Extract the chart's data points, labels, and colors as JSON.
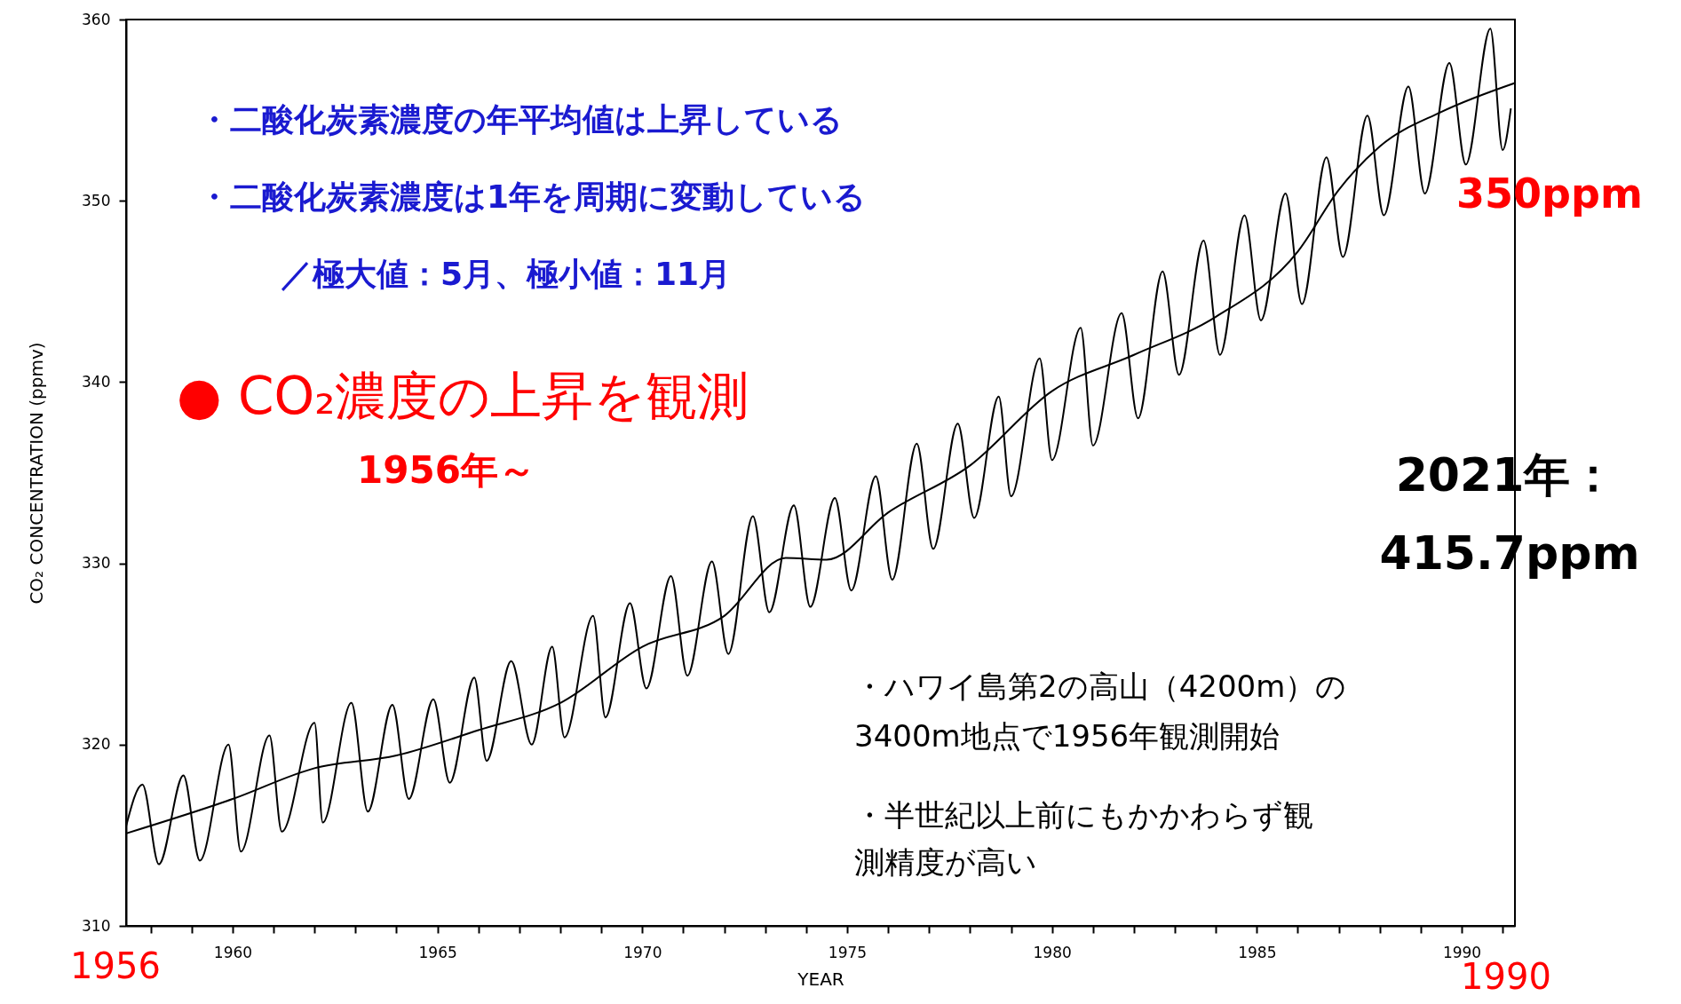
{
  "chart_data": {
    "type": "line",
    "xlabel": "YEAR",
    "ylabel": "CO₂ CONCENTRATION (ppmv)",
    "xlim": [
      1957.4,
      1991.3
    ],
    "ylim": [
      310,
      360
    ],
    "xticks": [
      {
        "value": 1958,
        "label": null
      },
      {
        "value": 1959,
        "label": null
      },
      1960,
      {
        "value": 1961,
        "label": null
      },
      {
        "value": 1962,
        "label": null
      },
      {
        "value": 1963,
        "label": null
      },
      {
        "value": 1964,
        "label": null
      },
      1965,
      {
        "value": 1966,
        "label": null
      },
      {
        "value": 1967,
        "label": null
      },
      {
        "value": 1968,
        "label": null
      },
      {
        "value": 1969,
        "label": null
      },
      1970,
      {
        "value": 1971,
        "label": null
      },
      {
        "value": 1972,
        "label": null
      },
      {
        "value": 1973,
        "label": null
      },
      {
        "value": 1974,
        "label": null
      },
      1975,
      {
        "value": 1976,
        "label": null
      },
      {
        "value": 1977,
        "label": null
      },
      {
        "value": 1978,
        "label": null
      },
      {
        "value": 1979,
        "label": null
      },
      1980,
      {
        "value": 1981,
        "label": null
      },
      {
        "value": 1982,
        "label": null
      },
      {
        "value": 1983,
        "label": null
      },
      {
        "value": 1984,
        "label": null
      },
      1985,
      {
        "value": 1986,
        "label": null
      },
      {
        "value": 1987,
        "label": null
      },
      {
        "value": 1988,
        "label": null
      },
      {
        "value": 1989,
        "label": null
      },
      1990,
      {
        "value": 1991,
        "label": null
      }
    ],
    "yticks": [
      310,
      320,
      330,
      340,
      350,
      360
    ],
    "grid": false,
    "marker": "none",
    "line_style": "solid",
    "series": [
      {
        "color": "#000000",
        "x": [
          1957.4,
          1957.8,
          1958.2,
          1958.8,
          1959.2,
          1959.9,
          1960.2,
          1960.9,
          1961.2,
          1962.0,
          1962.2,
          1962.9,
          1963.3,
          1963.9,
          1964.3,
          1964.9,
          1965.3,
          1965.9,
          1966.2,
          1966.8,
          1967.3,
          1967.8,
          1968.1,
          1968.8,
          1969.1,
          1969.7,
          1970.1,
          1970.7,
          1971.1,
          1971.7,
          1972.1,
          1972.7,
          1973.1,
          1973.7,
          1974.1,
          1974.7,
          1975.1,
          1975.7,
          1976.1,
          1976.7,
          1977.1,
          1977.7,
          1978.1,
          1978.7,
          1979.0,
          1979.7,
          1980.0,
          1980.7,
          1981.0,
          1981.7,
          1982.1,
          1982.7,
          1983.1,
          1983.7,
          1984.1,
          1984.7,
          1985.1,
          1985.7,
          1986.1,
          1986.7,
          1987.1,
          1987.7,
          1988.1,
          1988.7,
          1989.1,
          1989.7,
          1990.1,
          1990.7,
          1991.0,
          1991.2
        ],
        "values": [
          315.5,
          317.8,
          313.4,
          318.3,
          313.6,
          320.0,
          314.1,
          320.5,
          315.2,
          321.2,
          315.7,
          322.3,
          316.3,
          322.2,
          317.0,
          322.5,
          317.9,
          323.7,
          319.1,
          324.6,
          320.0,
          325.4,
          320.4,
          327.1,
          321.5,
          327.8,
          323.1,
          329.3,
          323.8,
          330.1,
          325.0,
          332.6,
          327.3,
          333.2,
          327.6,
          333.6,
          328.5,
          334.8,
          329.1,
          336.6,
          330.8,
          337.7,
          332.5,
          339.2,
          333.7,
          341.3,
          335.7,
          343.0,
          336.5,
          343.8,
          338.0,
          346.1,
          340.4,
          347.8,
          341.5,
          349.2,
          343.4,
          350.4,
          344.3,
          352.4,
          346.9,
          354.7,
          349.2,
          356.3,
          350.4,
          357.6,
          352.0,
          359.5,
          352.8,
          355.1
        ]
      },
      {
        "color": "#000000",
        "x": [
          1957.4,
          1960,
          1962,
          1964,
          1966,
          1968,
          1970,
          1972,
          1973.5,
          1974.5,
          1976,
          1978,
          1980,
          1982,
          1984,
          1986,
          1987,
          1988,
          1989.5,
          1991.3
        ],
        "values": [
          315.1,
          317.0,
          318.7,
          319.4,
          320.8,
          322.3,
          325.4,
          327.1,
          330.3,
          330.2,
          332.8,
          335.4,
          339.5,
          341.5,
          343.6,
          347.2,
          350.6,
          353.0,
          354.9,
          356.5
        ]
      }
    ],
    "annotations": [
      "・二酸化炭素濃度の年平均値は上昇している",
      "・二酸化炭素濃度は1年を周期に変動している",
      "／極大値：5月、極小値：11月",
      "● CO₂濃度の上昇を観測",
      "1956年～",
      "350ppm",
      "2021年：",
      "415.7ppm",
      "・ハワイ島第2の高山（4200m）の",
      "3400m地点で1956年観測開始",
      "・半世紀以上前にもかかわらず観",
      "測精度が高い",
      "1956",
      "1990"
    ]
  }
}
